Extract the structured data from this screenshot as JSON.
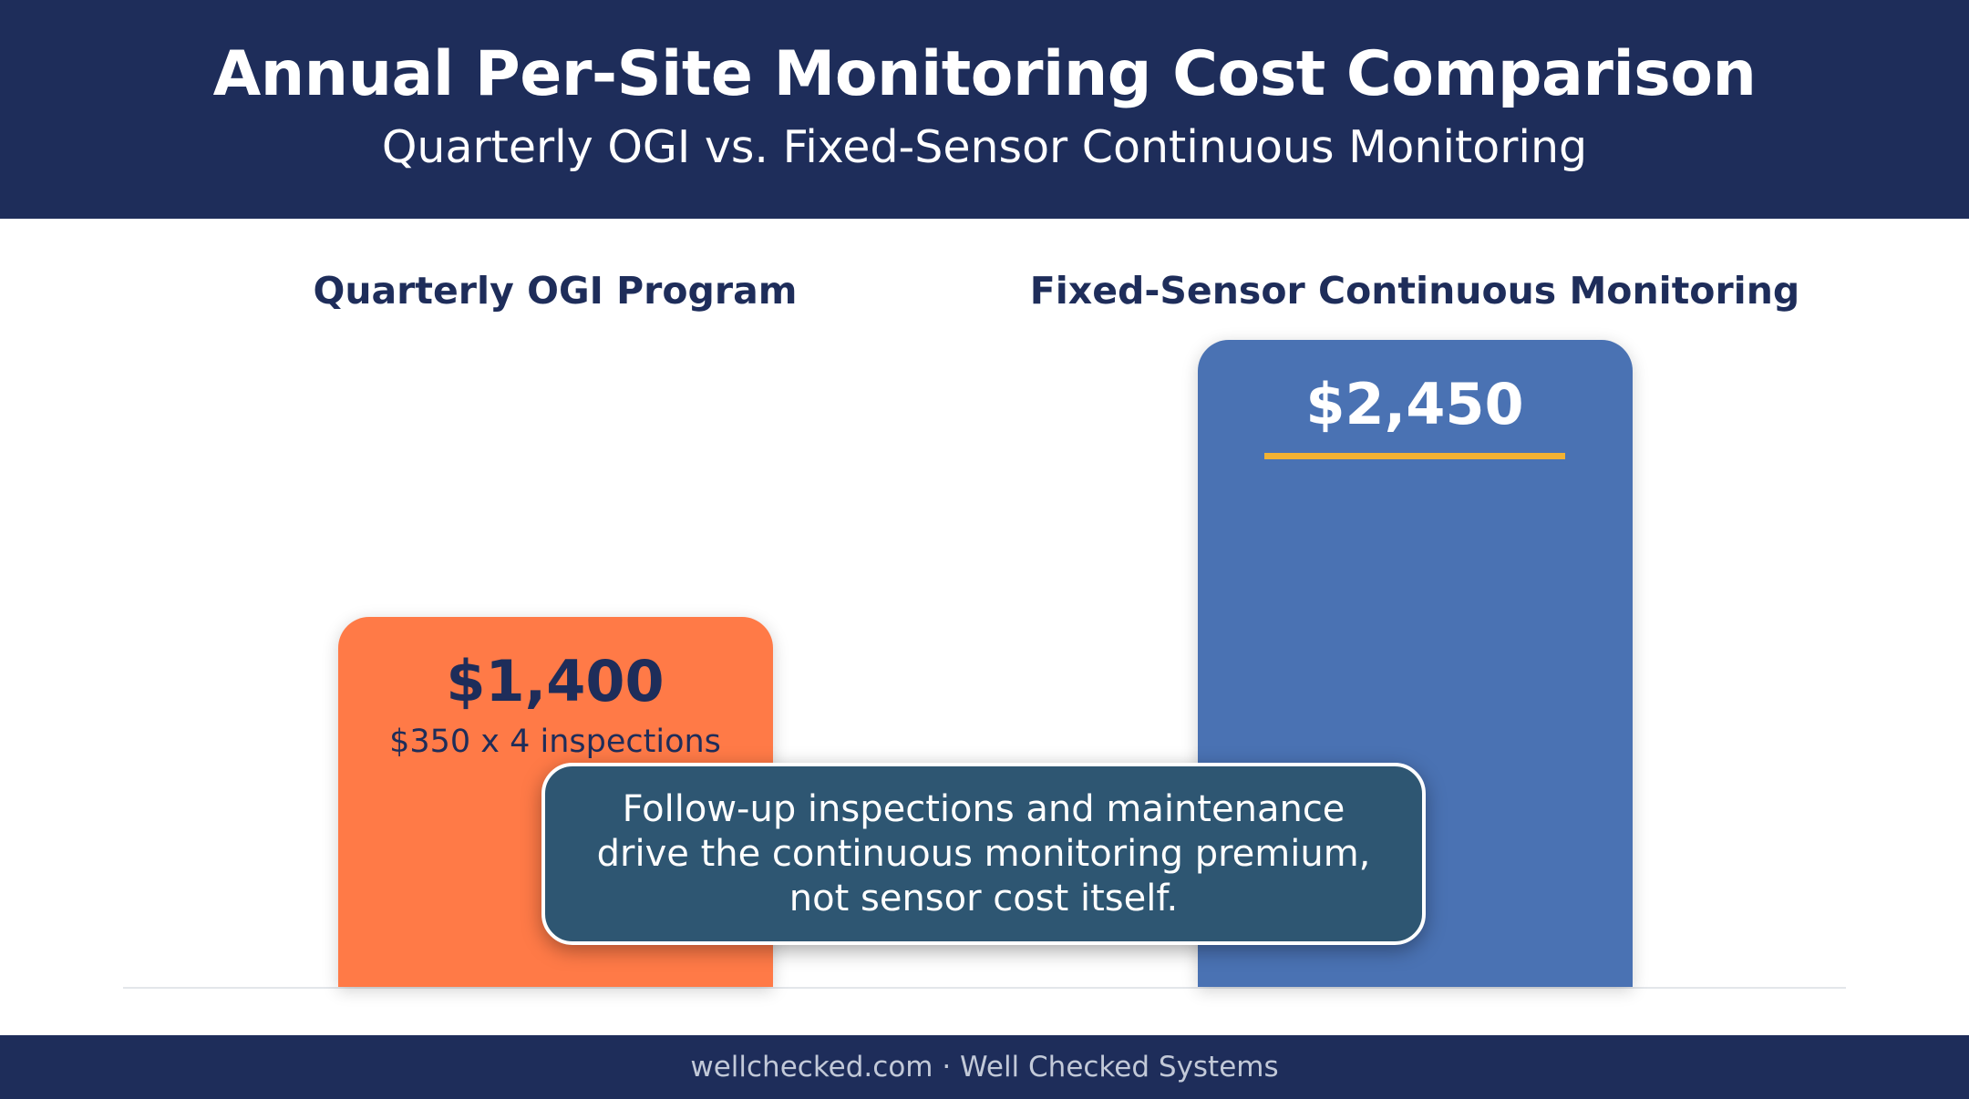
{
  "header": {
    "title": "Annual Per-Site Monitoring Cost Comparison",
    "subtitle": "Quarterly OGI vs. Fixed-Sensor Continuous Monitoring"
  },
  "chart_data": {
    "type": "bar",
    "title": "Annual Per-Site Monitoring Cost Comparison",
    "subtitle": "Quarterly OGI vs. Fixed-Sensor Continuous Monitoring",
    "categories": [
      "Quarterly OGI Program",
      "Fixed-Sensor Continuous Monitoring"
    ],
    "values": [
      1400,
      2450
    ],
    "value_labels": [
      "$1,400",
      "$2,450"
    ],
    "sub_labels": [
      "$350 x 4 inspections",
      ""
    ],
    "colors": [
      "#ff7a47",
      "#4a72b3"
    ],
    "value_colors": [
      "#1e2d5a",
      "#ffffff"
    ],
    "xlabel": "",
    "ylabel": "",
    "ylim": [
      0,
      2450
    ],
    "grid": false
  },
  "callout": {
    "lines": [
      "Follow-up inspections and maintenance",
      "drive the continuous monitoring premium,",
      "not sensor cost itself."
    ]
  },
  "footer": {
    "text": "wellchecked.com · Well Checked Systems"
  }
}
